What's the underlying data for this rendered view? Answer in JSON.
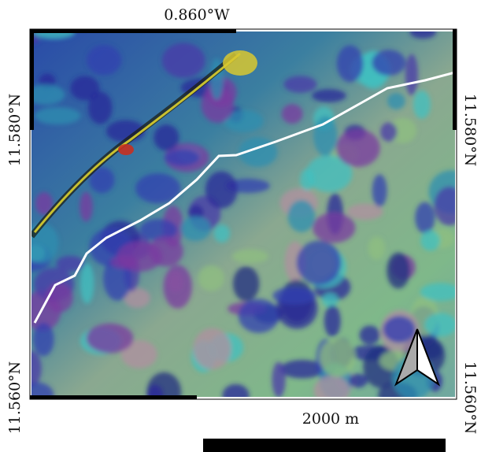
{
  "top_label": "0.860°W",
  "left_labels": [
    "11.580°N",
    "11.560°N"
  ],
  "right_labels": [
    "11.580°N",
    "11.560°N"
  ],
  "scale_bar": {
    "label": "2000 m"
  }
}
